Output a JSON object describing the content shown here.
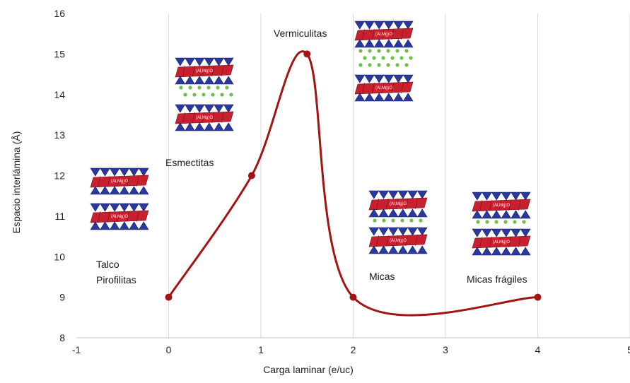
{
  "chart_data": {
    "type": "line",
    "xlabel": "Carga laminar (e/uc)",
    "ylabel": "Espacio interlámina (Å)",
    "xlim": [
      -1,
      5
    ],
    "ylim": [
      8,
      16
    ],
    "x_ticks": [
      "-1",
      "0",
      "1",
      "2",
      "3",
      "4",
      "5"
    ],
    "y_ticks": [
      "8",
      "9",
      "10",
      "11",
      "12",
      "13",
      "14",
      "15",
      "16"
    ],
    "grid": "vertical",
    "smooth": true,
    "series": [
      {
        "color": "#a01414",
        "points": [
          {
            "x": 0,
            "y": 9
          },
          {
            "x": 0.9,
            "y": 12
          },
          {
            "x": 1.5,
            "y": 15
          },
          {
            "x": 2,
            "y": 9
          },
          {
            "x": 4,
            "y": 9
          }
        ]
      }
    ],
    "annotations": [
      {
        "text": "Vermiculitas",
        "x": 1.5,
        "y": 15
      },
      {
        "text": "Esmectitas",
        "x": 0.9,
        "y": 12
      },
      {
        "text": "Talco",
        "x": -0.5,
        "y": 10
      },
      {
        "text": "Pirofilitas",
        "x": -0.5,
        "y": 9.5
      },
      {
        "text": "Micas",
        "x": 2.5,
        "y": 9.5
      },
      {
        "text": "Micas frágiles",
        "x": 3.6,
        "y": 9.5
      }
    ],
    "structure_images": [
      {
        "name": "talco-pirofilitas-structure",
        "ions": false
      },
      {
        "name": "esmectitas-structure",
        "ions": true
      },
      {
        "name": "vermiculitas-structure",
        "ions": true
      },
      {
        "name": "micas-structure",
        "ions": true
      },
      {
        "name": "micas-fragiles-structure",
        "ions": true
      }
    ]
  }
}
